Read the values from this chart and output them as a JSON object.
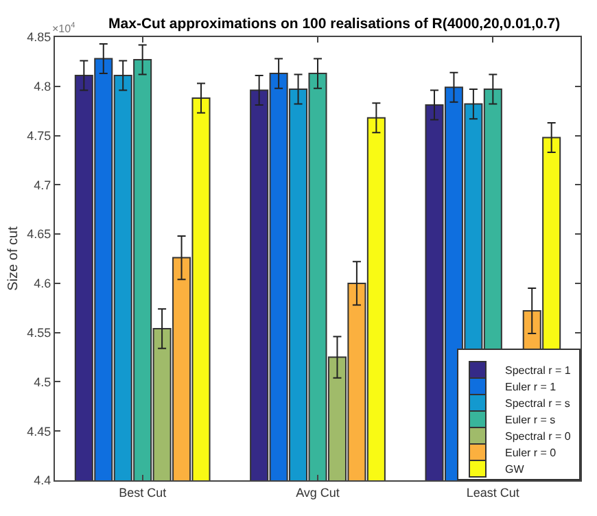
{
  "chart_data": {
    "type": "bar",
    "title": "Max-Cut approximations on 100 realisations of R(4000,20,0.01,0.7)",
    "ylabel": "Size of cut",
    "annotations": [
      "×10$^{4}$"
    ],
    "categories": [
      "Best Cut",
      "Avg Cut",
      "Least Cut"
    ],
    "series": [
      {
        "name": "Spectral r = 1",
        "color": "#352a87",
        "values": [
          4.811,
          4.796,
          4.781
        ],
        "errors": [
          0.015,
          0.015,
          0.015
        ]
      },
      {
        "name": "Euler r = 1",
        "color": "#0f6fdf",
        "values": [
          4.828,
          4.813,
          4.799
        ],
        "errors": [
          0.015,
          0.015,
          0.015
        ]
      },
      {
        "name": "Spectral r = s",
        "color": "#1399cf",
        "values": [
          4.811,
          4.797,
          4.782
        ],
        "errors": [
          0.015,
          0.015,
          0.015
        ]
      },
      {
        "name": "Euler r = s",
        "color": "#38b59b",
        "values": [
          4.827,
          4.813,
          4.797
        ],
        "errors": [
          0.015,
          0.015,
          0.015
        ]
      },
      {
        "name": "Spectral r = 0",
        "color": "#a0bb6a",
        "values": [
          4.554,
          4.525,
          null
        ],
        "errors": [
          0.02,
          0.021,
          null
        ]
      },
      {
        "name": "Euler r = 0",
        "color": "#fbb03f",
        "values": [
          4.626,
          4.6,
          4.572
        ],
        "errors": [
          0.022,
          0.022,
          0.023
        ]
      },
      {
        "name": "GW",
        "color": "#f9fa14",
        "values": [
          4.788,
          4.768,
          4.748
        ],
        "errors": [
          0.015,
          0.015,
          0.015
        ]
      }
    ],
    "ylim": [
      4.4,
      4.85
    ],
    "yticks": [
      4.4,
      4.45,
      4.5,
      4.55,
      4.6,
      4.65,
      4.7,
      4.75,
      4.8,
      4.85
    ],
    "grid": false,
    "legend": "bottom right"
  }
}
